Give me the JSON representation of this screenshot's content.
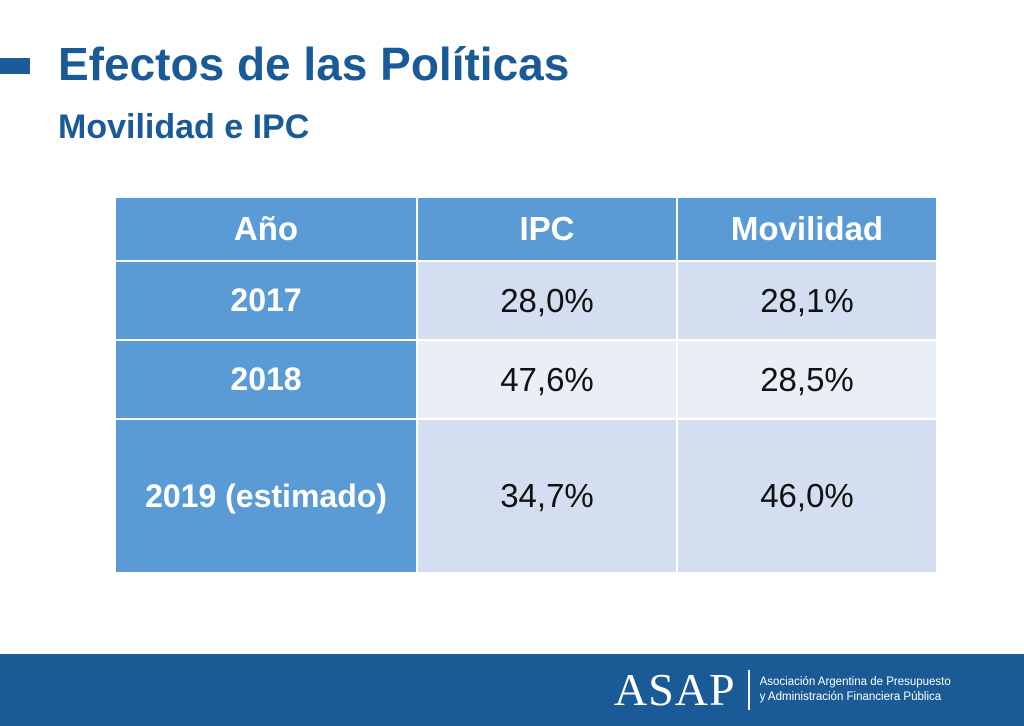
{
  "header": {
    "title": "Efectos de las Políticas",
    "subtitle": "Movilidad e IPC"
  },
  "table": {
    "columns": [
      "Año",
      "IPC",
      "Movilidad"
    ],
    "rows": [
      {
        "year": "2017",
        "ipc": "28,0%",
        "movilidad": "28,1%"
      },
      {
        "year": "2018",
        "ipc": "47,6%",
        "movilidad": "28,5%"
      },
      {
        "year": "2019 (estimado)",
        "ipc": "34,7%",
        "movilidad": "46,0%"
      }
    ]
  },
  "footer": {
    "logo_mark": "ASAP",
    "logo_line1": "Asociación Argentina de Presupuesto",
    "logo_line2": "y Administración Financiera Pública"
  },
  "colors": {
    "brand_blue": "#1a5a96",
    "header_cell": "#5b9bd5",
    "cell_light": "#d3dff0",
    "cell_lighter": "#eaeff7"
  }
}
